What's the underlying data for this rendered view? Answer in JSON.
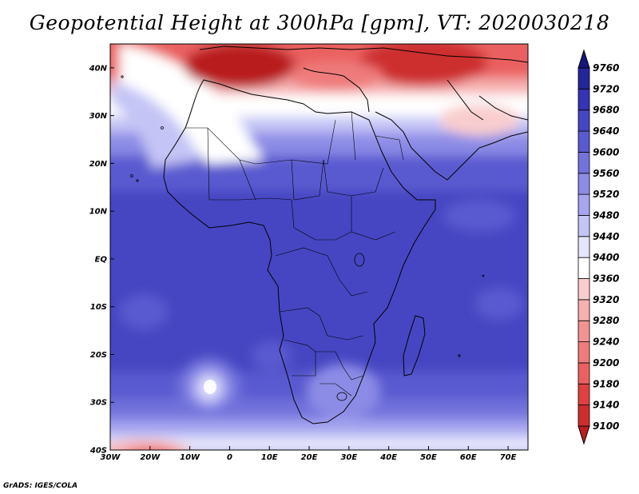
{
  "title": "Geopotential Height at 300hPa [gpm], VT: 2020030218",
  "footer": "GrADS: IGES/COLA",
  "map": {
    "lon_range": [
      -30,
      75
    ],
    "lat_range": [
      -40,
      45
    ],
    "lon_ticks": [
      "30W",
      "20W",
      "10W",
      "0",
      "10E",
      "20E",
      "30E",
      "40E",
      "50E",
      "60E",
      "70E"
    ],
    "lat_ticks": [
      "40N",
      "30N",
      "20N",
      "10N",
      "EQ",
      "10S",
      "20S",
      "30S",
      "40S"
    ]
  },
  "colorbar": {
    "levels": [
      9100,
      9140,
      9180,
      9200,
      9240,
      9280,
      9320,
      9360,
      9400,
      9440,
      9480,
      9520,
      9560,
      9600,
      9640,
      9680,
      9720,
      9760
    ],
    "colors": [
      "#b81e1e",
      "#cd2d2d",
      "#e04040",
      "#ea6060",
      "#ef7b7b",
      "#f29393",
      "#f6b0b0",
      "#f9cdcd",
      "#ffffff",
      "#e4e4fc",
      "#c4c4f6",
      "#a5a5f0",
      "#8c8ce6",
      "#7272dc",
      "#5a5ad0",
      "#4646c2",
      "#3434b4",
      "#25259a",
      "#161680"
    ]
  }
}
